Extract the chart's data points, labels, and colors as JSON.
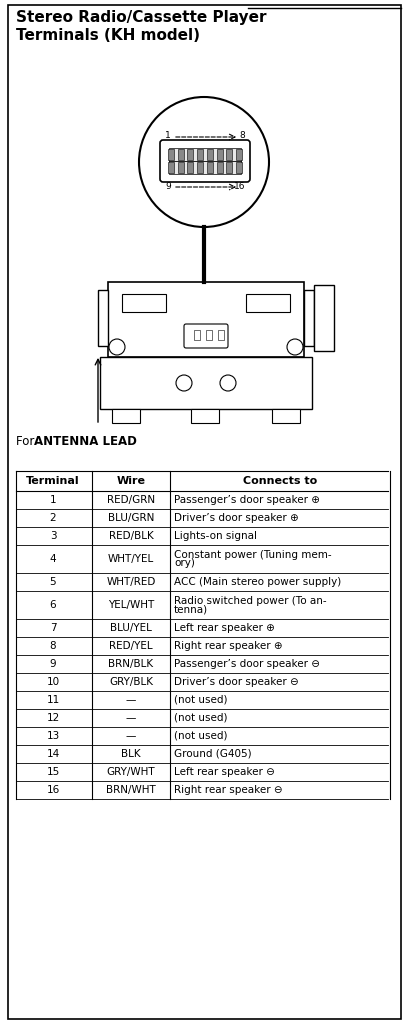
{
  "title_line1": "Stereo Radio/Cassette Player",
  "title_line2": "Terminals (KH model)",
  "antenna_label_prefix": "For ",
  "antenna_label_bold": "ANTENNA LEAD",
  "col_headers": [
    "Terminal",
    "Wire",
    "Connects to"
  ],
  "rows": [
    [
      "1",
      "RED/GRN",
      "Passenger’s door speaker ⊕"
    ],
    [
      "2",
      "BLU/GRN",
      "Driver’s door speaker ⊕"
    ],
    [
      "3",
      "RED/BLK",
      "Lights-on signal"
    ],
    [
      "4",
      "WHT/YEL",
      "Constant power (Tuning mem-\nory)"
    ],
    [
      "5",
      "WHT/RED",
      "ACC (Main stereo power supply)"
    ],
    [
      "6",
      "YEL/WHT",
      "Radio switched power (To an-\ntenna)"
    ],
    [
      "7",
      "BLU/YEL",
      "Left rear speaker ⊕"
    ],
    [
      "8",
      "RED/YEL",
      "Right rear speaker ⊕"
    ],
    [
      "9",
      "BRN/BLK",
      "Passenger’s door speaker ⊖"
    ],
    [
      "10",
      "GRY/BLK",
      "Driver’s door speaker ⊖"
    ],
    [
      "11",
      "—",
      "(not used)"
    ],
    [
      "12",
      "—",
      "(not used)"
    ],
    [
      "13",
      "—",
      "(not used)"
    ],
    [
      "14",
      "BLK",
      "Ground (G405)"
    ],
    [
      "15",
      "GRY/WHT",
      "Left rear speaker ⊖"
    ],
    [
      "16",
      "BRN/WHT",
      "Right rear speaker ⊖"
    ]
  ],
  "row_h_list": [
    18,
    18,
    18,
    28,
    18,
    28,
    18,
    18,
    18,
    18,
    18,
    18,
    18,
    18,
    18,
    18
  ],
  "bg_color": "#ffffff",
  "border_color": "#000000",
  "text_color": "#000000",
  "table_header_fontsize": 8,
  "table_body_fontsize": 7.5,
  "title_fontsize": 11
}
